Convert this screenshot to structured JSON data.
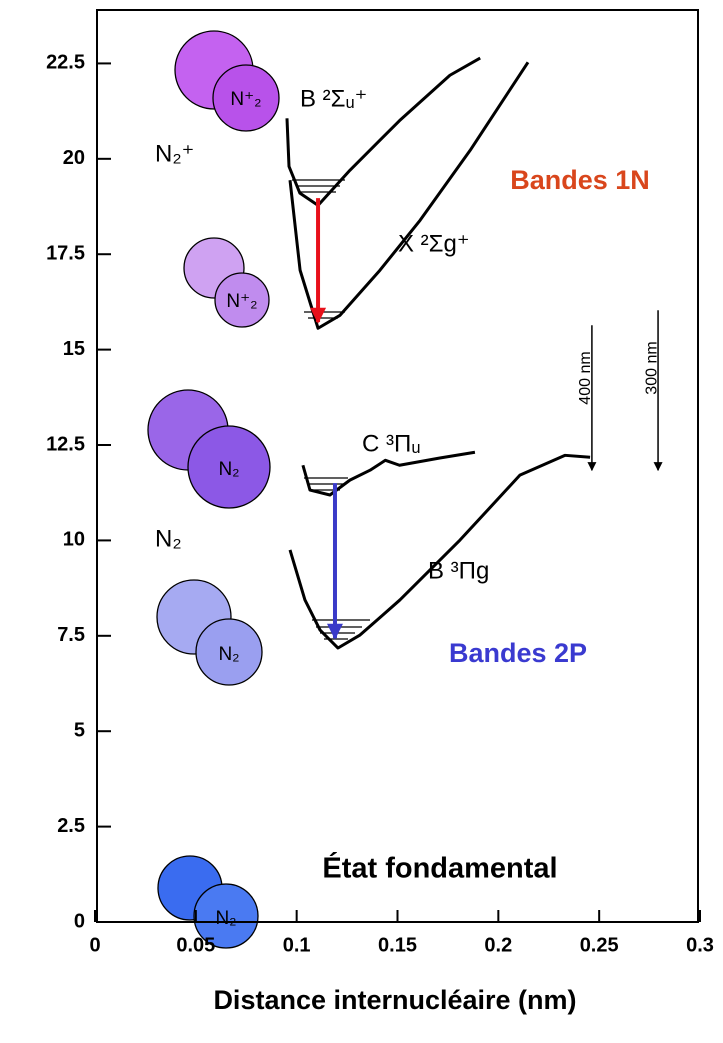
{
  "chart_data": {
    "type": "line",
    "x_label": "Distance internucléaire (nm)",
    "xlim": [
      0,
      0.3
    ],
    "ylim": [
      0,
      23.9
    ],
    "xticks": [
      0,
      0.05,
      0.1,
      0.15,
      0.2,
      0.25,
      0.3
    ],
    "yticks": [
      0,
      2.5,
      5,
      7.5,
      10,
      12.5,
      15,
      17.5,
      20,
      22.5
    ],
    "series": [
      {
        "name": "B ²Σᵤ⁺",
        "color": "#000000",
        "x": [
          0.0952,
          0.0962,
          0.1016,
          0.1106,
          0.1264,
          0.151,
          0.176,
          0.191
        ],
        "y": [
          21.06,
          19.8,
          19.1,
          18.78,
          19.7,
          21.0,
          22.19,
          22.64
        ]
      },
      {
        "name": "X ²Σg⁺",
        "color": "#000000",
        "x": [
          0.0967,
          0.1017,
          0.1106,
          0.1215,
          0.1413,
          0.1612,
          0.186,
          0.2147
        ],
        "y": [
          19.44,
          17.08,
          15.56,
          15.9,
          17.08,
          18.39,
          20.22,
          22.53
        ]
      },
      {
        "name": "C ³Πᵤ",
        "color": "#000000",
        "x": [
          0.1031,
          0.1066,
          0.1165,
          0.1264,
          0.1364,
          0.144,
          0.151,
          0.171,
          0.1884
        ],
        "y": [
          11.97,
          11.32,
          11.19,
          11.58,
          11.84,
          12.1,
          11.97,
          12.16,
          12.31
        ]
      },
      {
        "name": "B ³Πg",
        "color": "#000000",
        "x": [
          0.0967,
          0.1041,
          0.1116,
          0.1205,
          0.1314,
          0.1512,
          0.181,
          0.2107,
          0.233,
          0.2455
        ],
        "y": [
          9.75,
          8.44,
          7.65,
          7.18,
          7.52,
          8.44,
          10.01,
          11.71,
          12.23,
          12.18
        ]
      }
    ],
    "arrows": [
      {
        "label": "Bandes 1N",
        "color": "#e8101a",
        "label_color": "#d9461c",
        "x": 0.1106,
        "y": [
          18.97,
          15.72
        ]
      },
      {
        "label": "Bandes 2P",
        "color": "#3a3ac8",
        "label_color": "#3a3ad0",
        "x": 0.119,
        "y": [
          11.5,
          7.44
        ]
      },
      {
        "label": "400 nm",
        "color": "#000000",
        "label_color": "#000000",
        "x": 0.2464,
        "y": [
          15.64,
          11.84
        ]
      },
      {
        "label": "300 nm",
        "color": "#000000",
        "label_color": "#000000",
        "x": 0.2792,
        "y": [
          16.03,
          11.84
        ]
      }
    ],
    "annotations": [
      "État fondamental"
    ],
    "state_labels": [
      "N₂⁺",
      "N₂"
    ],
    "molecule_labels": [
      "N⁺₂",
      "N⁺₂",
      "N₂",
      "N₂",
      "N₂"
    ]
  }
}
